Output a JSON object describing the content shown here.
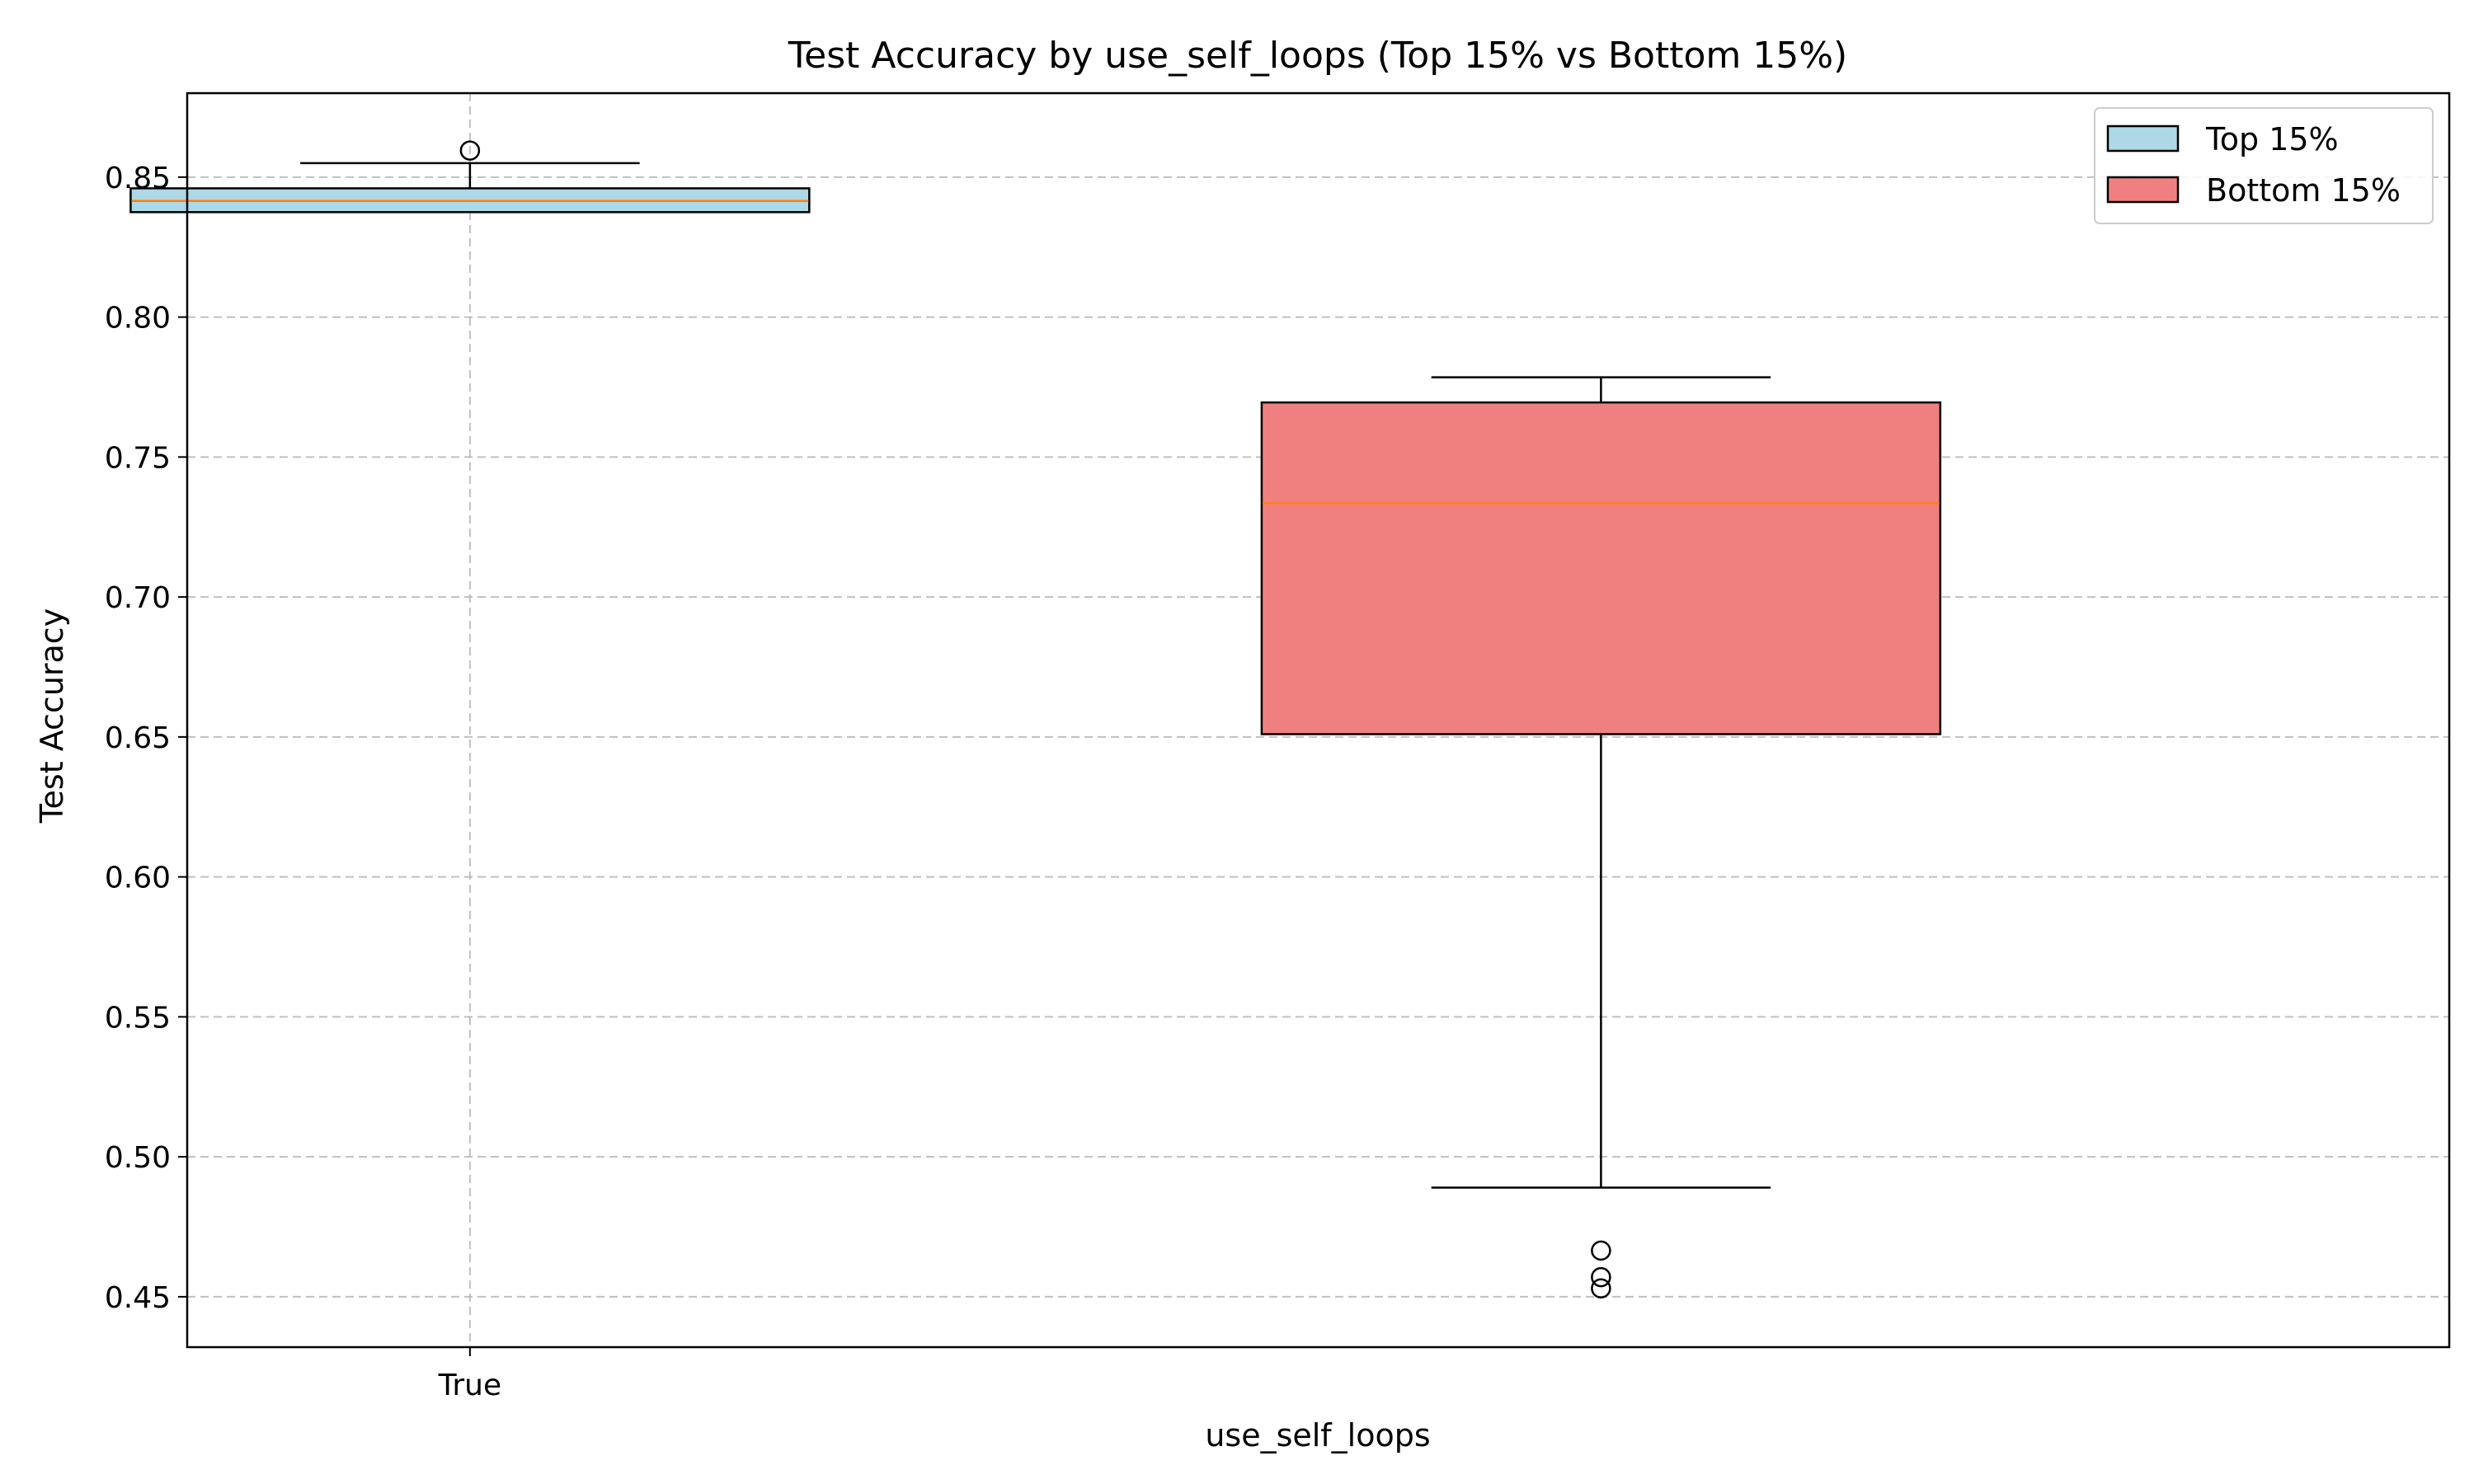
{
  "chart_data": {
    "type": "boxplot",
    "title": "Test Accuracy by use_self_loops (Top 15% vs Bottom 15%)",
    "xlabel": "use_self_loops",
    "ylabel": "Test Accuracy",
    "ylim": [
      0.432,
      0.88
    ],
    "yticks": [
      0.45,
      0.5,
      0.55,
      0.6,
      0.65,
      0.7,
      0.75,
      0.8,
      0.85
    ],
    "ytick_labels": [
      "0.45",
      "0.50",
      "0.55",
      "0.60",
      "0.65",
      "0.70",
      "0.75",
      "0.80",
      "0.85"
    ],
    "xtick_labels": [
      "True"
    ],
    "grid": true,
    "legend": {
      "placement": "top-right"
    },
    "series": [
      {
        "name": "Top 15%",
        "color": "#add8e6",
        "slot": 1,
        "whisker_low": 0.8375,
        "q1": 0.8375,
        "median": 0.8415,
        "q3": 0.846,
        "whisker_high": 0.855,
        "outliers": [
          0.8595
        ]
      },
      {
        "name": "Bottom 15%",
        "color": "#f08080",
        "slot": 3,
        "whisker_low": 0.489,
        "q1": 0.651,
        "median": 0.7335,
        "q3": 0.7695,
        "whisker_high": 0.7785,
        "outliers": [
          0.4665,
          0.457,
          0.453
        ]
      }
    ],
    "median_color": "#ff7f0e"
  }
}
